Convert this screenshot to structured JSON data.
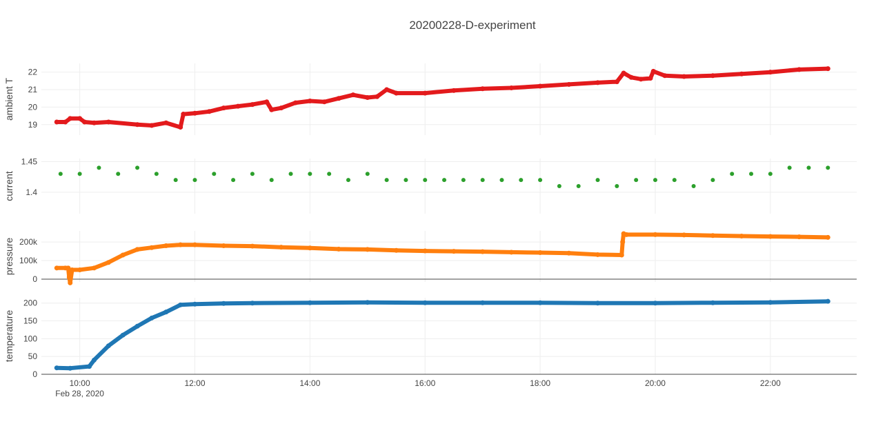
{
  "chart_data": {
    "type": "scatter",
    "title": "20200228-D-experiment",
    "x_axis": {
      "type": "date",
      "range": [
        "2020-02-28 09:20",
        "2020-02-28 23:30"
      ],
      "tick_labels": [
        "10:00",
        "12:00",
        "14:00",
        "16:00",
        "18:00",
        "20:00",
        "22:00"
      ],
      "date_label": "Feb 28, 2020",
      "grid": true
    },
    "panels": [
      {
        "name": "ambient-t",
        "ylabel": "ambient T",
        "color": "#e31a1c",
        "ylim": [
          18.4,
          22.5
        ],
        "yticks": [
          19,
          20,
          21,
          22
        ],
        "tick_labels": [
          "19",
          "20",
          "21",
          "22"
        ],
        "series": [
          {
            "x": [
              "2020-02-28 09:36",
              "2020-02-28 09:45",
              "2020-02-28 09:50",
              "2020-02-28 10:00",
              "2020-02-28 10:05",
              "2020-02-28 10:15",
              "2020-02-28 10:30",
              "2020-02-28 11:00",
              "2020-02-28 11:15",
              "2020-02-28 11:30",
              "2020-02-28 11:45",
              "2020-02-28 11:48",
              "2020-02-28 12:00",
              "2020-02-28 12:15",
              "2020-02-28 12:30",
              "2020-02-28 12:45",
              "2020-02-28 13:00",
              "2020-02-28 13:15",
              "2020-02-28 13:20",
              "2020-02-28 13:30",
              "2020-02-28 13:45",
              "2020-02-28 14:00",
              "2020-02-28 14:15",
              "2020-02-28 14:30",
              "2020-02-28 14:45",
              "2020-02-28 15:00",
              "2020-02-28 15:10",
              "2020-02-28 15:20",
              "2020-02-28 15:30",
              "2020-02-28 16:00",
              "2020-02-28 16:30",
              "2020-02-28 17:00",
              "2020-02-28 17:30",
              "2020-02-28 18:00",
              "2020-02-28 18:30",
              "2020-02-28 19:00",
              "2020-02-28 19:20",
              "2020-02-28 19:27",
              "2020-02-28 19:35",
              "2020-02-28 19:45",
              "2020-02-28 19:55",
              "2020-02-28 19:58",
              "2020-02-28 20:10",
              "2020-02-28 20:30",
              "2020-02-28 21:00",
              "2020-02-28 21:30",
              "2020-02-28 22:00",
              "2020-02-28 22:30",
              "2020-02-28 23:00"
            ],
            "y": [
              19.15,
              19.15,
              19.35,
              19.35,
              19.15,
              19.1,
              19.15,
              19.0,
              18.95,
              19.1,
              18.85,
              19.6,
              19.65,
              19.75,
              19.95,
              20.05,
              20.15,
              20.3,
              19.85,
              19.95,
              20.25,
              20.35,
              20.3,
              20.5,
              20.7,
              20.55,
              20.6,
              21.0,
              20.8,
              20.8,
              20.95,
              21.05,
              21.1,
              21.2,
              21.3,
              21.4,
              21.45,
              21.95,
              21.7,
              21.6,
              21.65,
              22.05,
              21.8,
              21.75,
              21.8,
              21.9,
              22.0,
              22.15,
              22.2
            ]
          }
        ]
      },
      {
        "name": "current",
        "ylabel": "current",
        "color": "#2ca02c",
        "ylim": [
          1.365,
          1.455
        ],
        "yticks": [
          1.4,
          1.45
        ],
        "tick_labels": [
          "1.4",
          "1.45"
        ],
        "series": [
          {
            "x": [
              "2020-02-28 09:40",
              "2020-02-28 10:00",
              "2020-02-28 10:20",
              "2020-02-28 10:40",
              "2020-02-28 11:00",
              "2020-02-28 11:20",
              "2020-02-28 11:40",
              "2020-02-28 12:00",
              "2020-02-28 12:20",
              "2020-02-28 12:40",
              "2020-02-28 13:00",
              "2020-02-28 13:20",
              "2020-02-28 13:40",
              "2020-02-28 14:00",
              "2020-02-28 14:20",
              "2020-02-28 14:40",
              "2020-02-28 15:00",
              "2020-02-28 15:20",
              "2020-02-28 15:40",
              "2020-02-28 16:00",
              "2020-02-28 16:20",
              "2020-02-28 16:40",
              "2020-02-28 17:00",
              "2020-02-28 17:20",
              "2020-02-28 17:40",
              "2020-02-28 18:00",
              "2020-02-28 18:20",
              "2020-02-28 18:40",
              "2020-02-28 19:00",
              "2020-02-28 19:20",
              "2020-02-28 19:40",
              "2020-02-28 20:00",
              "2020-02-28 20:20",
              "2020-02-28 20:40",
              "2020-02-28 21:00",
              "2020-02-28 21:20",
              "2020-02-28 21:40",
              "2020-02-28 22:00",
              "2020-02-28 22:20",
              "2020-02-28 22:40",
              "2020-02-28 23:00"
            ],
            "y": [
              1.43,
              1.43,
              1.44,
              1.43,
              1.44,
              1.43,
              1.42,
              1.42,
              1.43,
              1.42,
              1.43,
              1.42,
              1.43,
              1.43,
              1.43,
              1.42,
              1.43,
              1.42,
              1.42,
              1.42,
              1.42,
              1.42,
              1.42,
              1.42,
              1.42,
              1.42,
              1.41,
              1.41,
              1.42,
              1.41,
              1.42,
              1.42,
              1.42,
              1.41,
              1.42,
              1.43,
              1.43,
              1.43,
              1.44,
              1.44,
              1.44
            ]
          }
        ]
      },
      {
        "name": "pressure",
        "ylabel": "pressure",
        "color": "#ff7f0e",
        "ylim": [
          -15000,
          260000
        ],
        "yticks": [
          0,
          100000,
          200000
        ],
        "tick_labels": [
          "0",
          "100k",
          "200k"
        ],
        "zeroline": true,
        "series": [
          {
            "x": [
              "2020-02-28 09:36",
              "2020-02-28 09:45",
              "2020-02-28 09:48",
              "2020-02-28 09:49",
              "2020-02-28 09:50",
              "2020-02-28 09:52",
              "2020-02-28 10:00",
              "2020-02-28 10:15",
              "2020-02-28 10:30",
              "2020-02-28 10:45",
              "2020-02-28 11:00",
              "2020-02-28 11:15",
              "2020-02-28 11:30",
              "2020-02-28 11:45",
              "2020-02-28 12:00",
              "2020-02-28 12:30",
              "2020-02-28 13:00",
              "2020-02-28 13:30",
              "2020-02-28 14:00",
              "2020-02-28 14:30",
              "2020-02-28 15:00",
              "2020-02-28 15:30",
              "2020-02-28 16:00",
              "2020-02-28 16:30",
              "2020-02-28 17:00",
              "2020-02-28 17:30",
              "2020-02-28 18:00",
              "2020-02-28 18:30",
              "2020-02-28 19:00",
              "2020-02-28 19:25",
              "2020-02-28 19:26",
              "2020-02-28 19:27",
              "2020-02-28 19:30",
              "2020-02-28 20:00",
              "2020-02-28 20:30",
              "2020-02-28 21:00",
              "2020-02-28 21:30",
              "2020-02-28 22:00",
              "2020-02-28 22:30",
              "2020-02-28 23:00"
            ],
            "y": [
              60000,
              60000,
              60000,
              10000,
              -20000,
              50000,
              50000,
              60000,
              90000,
              130000,
              160000,
              170000,
              180000,
              185000,
              185000,
              180000,
              178000,
              172000,
              168000,
              162000,
              160000,
              155000,
              152000,
              150000,
              148000,
              145000,
              143000,
              140000,
              132000,
              130000,
              200000,
              245000,
              240000,
              240000,
              238000,
              235000,
              232000,
              230000,
              228000,
              225000
            ]
          }
        ]
      },
      {
        "name": "temperature",
        "ylabel": "temperature",
        "color": "#1f77b4",
        "ylim": [
          0,
          215
        ],
        "yticks": [
          0,
          50,
          100,
          150,
          200
        ],
        "tick_labels": [
          "0",
          "50",
          "100",
          "150",
          "200"
        ],
        "series": [
          {
            "x": [
              "2020-02-28 09:36",
              "2020-02-28 09:50",
              "2020-02-28 10:10",
              "2020-02-28 10:15",
              "2020-02-28 10:30",
              "2020-02-28 10:45",
              "2020-02-28 11:00",
              "2020-02-28 11:15",
              "2020-02-28 11:30",
              "2020-02-28 11:45",
              "2020-02-28 12:00",
              "2020-02-28 12:30",
              "2020-02-28 13:00",
              "2020-02-28 14:00",
              "2020-02-28 15:00",
              "2020-02-28 16:00",
              "2020-02-28 17:00",
              "2020-02-28 18:00",
              "2020-02-28 19:00",
              "2020-02-28 20:00",
              "2020-02-28 21:00",
              "2020-02-28 22:00",
              "2020-02-28 23:00"
            ],
            "y": [
              18,
              17,
              22,
              40,
              80,
              110,
              135,
              158,
              175,
              195,
              197,
              199,
              200,
              201,
              202,
              201,
              201,
              201,
              200,
              200,
              201,
              202,
              205
            ]
          }
        ]
      }
    ]
  }
}
